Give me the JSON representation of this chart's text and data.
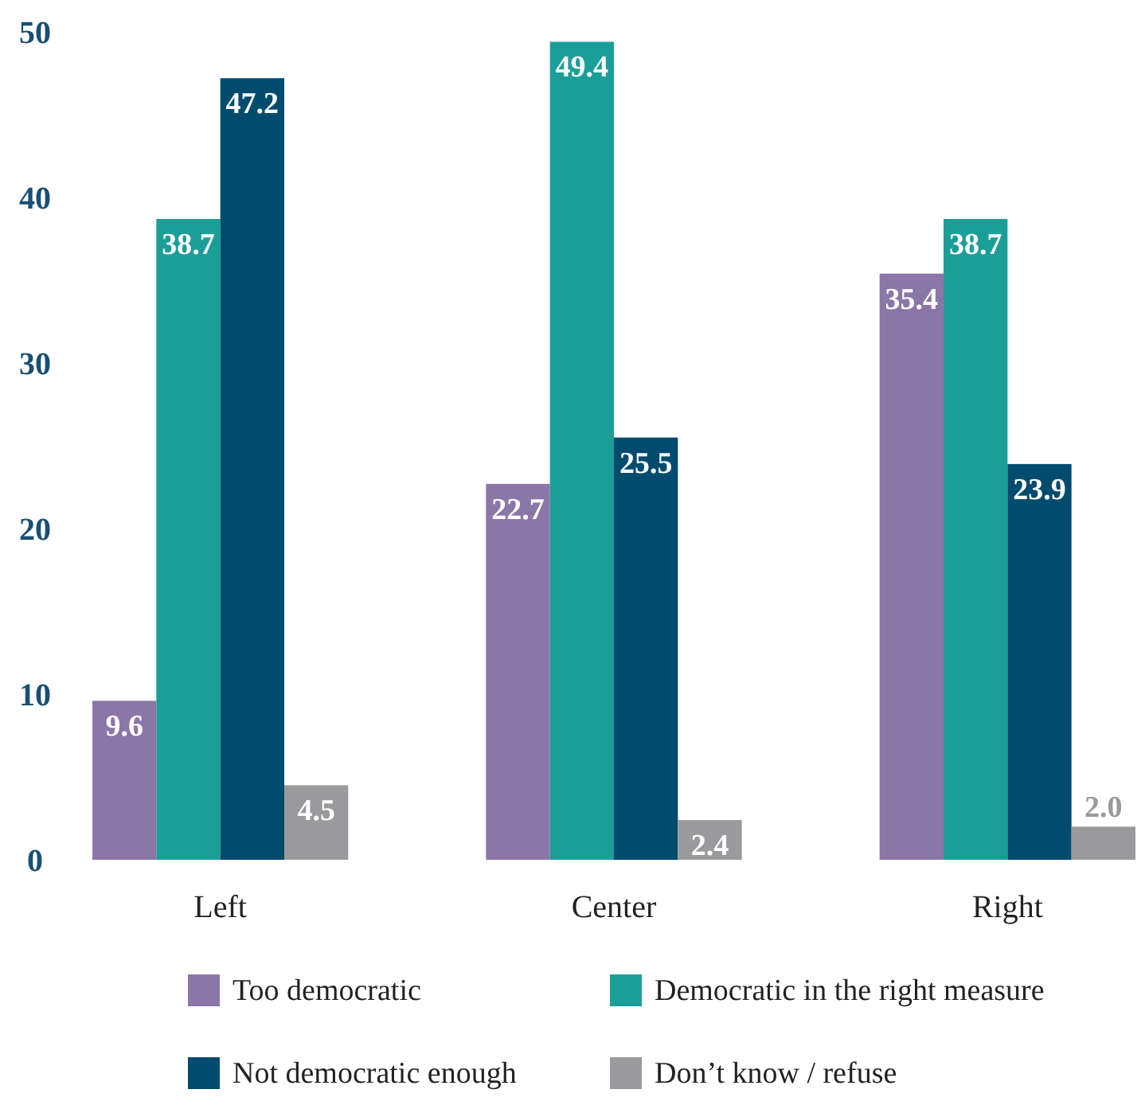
{
  "chart_data": {
    "type": "bar",
    "categories": [
      "Left",
      "Center",
      "Right"
    ],
    "series": [
      {
        "name": "Too democratic",
        "color": "#8b76a8",
        "values": [
          9.6,
          22.7,
          35.4
        ],
        "value_labels": [
          "9.6",
          "22.7",
          "35.4"
        ]
      },
      {
        "name": "Democratic in the right measure",
        "color": "#1c9e98",
        "values": [
          38.7,
          49.4,
          38.7
        ],
        "value_labels": [
          "38.7",
          "49.4",
          "38.7"
        ]
      },
      {
        "name": "Not democratic enough",
        "color": "#004b6e",
        "values": [
          47.2,
          25.5,
          23.9
        ],
        "value_labels": [
          "47.2",
          "25.5",
          "23.9"
        ]
      },
      {
        "name": "Don’t know / refuse",
        "color": "#9a9a9c",
        "values": [
          4.5,
          2.4,
          2.0
        ],
        "value_labels": [
          "4.5",
          "2.4",
          "2.0"
        ]
      }
    ],
    "ylim": [
      0,
      50
    ],
    "yticks": [
      0,
      10,
      20,
      30,
      40,
      50
    ],
    "grid": false,
    "legend": "bottom"
  }
}
